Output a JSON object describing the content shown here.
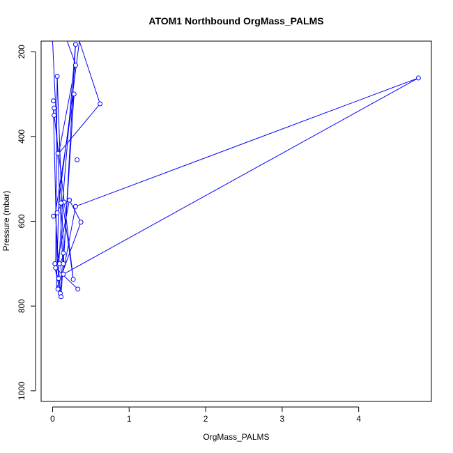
{
  "chart_data": {
    "type": "line",
    "title": "ATOM1 Northbound OrgMass_PALMS",
    "xlabel": "OrgMass_PALMS",
    "ylabel": "Pressure (mbar)",
    "xlim": [
      -0.15,
      4.95
    ],
    "ylim": [
      175,
      1025
    ],
    "y_reversed": true,
    "x_ticks": [
      0,
      1,
      2,
      3,
      4
    ],
    "y_ticks": [
      200,
      400,
      600,
      800,
      1000
    ],
    "x_tick_labels": [
      "0",
      "1",
      "2",
      "3",
      "4"
    ],
    "y_tick_labels": [
      "200",
      "400",
      "600",
      "800",
      "1000"
    ],
    "grid": false,
    "legend": "none",
    "series_color": "#0000ff",
    "series": [
      {
        "x": [
          0.33,
          0.04,
          0.06,
          0.15,
          0.3,
          4.78,
          0.14,
          0.0,
          0.19,
          0.3,
          0.08,
          0.62,
          0.35,
          0.08,
          0.05,
          0.37,
          0.22,
          0.06,
          0.01,
          0.27,
          0.13,
          0.07,
          0.02,
          0.11,
          0.28,
          0.03,
          0.13,
          0.3,
          0.15,
          0.1,
          0.12,
          0.1,
          0.04
        ],
        "y": [
          760,
          710,
          258,
          710,
          565,
          262,
          725,
          175,
          175,
          230,
          440,
          323,
          175,
          555,
          760,
          602,
          550,
          700,
          333,
          737,
          555,
          735,
          700,
          778,
          300,
          588,
          555,
          183,
          675,
          700,
          722,
          770,
          590
        ]
      }
    ],
    "points": [
      {
        "x": 0.01,
        "y": 316
      },
      {
        "x": 0.02,
        "y": 333
      },
      {
        "x": 0.02,
        "y": 350
      },
      {
        "x": 0.06,
        "y": 258
      },
      {
        "x": 0.3,
        "y": 183
      },
      {
        "x": 0.3,
        "y": 232
      },
      {
        "x": 0.28,
        "y": 300
      },
      {
        "x": 0.62,
        "y": 323
      },
      {
        "x": 4.78,
        "y": 262
      },
      {
        "x": 0.07,
        "y": 440
      },
      {
        "x": 0.32,
        "y": 455
      },
      {
        "x": 0.06,
        "y": 580
      },
      {
        "x": 0.01,
        "y": 588
      },
      {
        "x": 0.37,
        "y": 602
      },
      {
        "x": 0.3,
        "y": 565
      },
      {
        "x": 0.22,
        "y": 550
      },
      {
        "x": 0.13,
        "y": 555
      },
      {
        "x": 0.15,
        "y": 555
      },
      {
        "x": 0.11,
        "y": 557
      },
      {
        "x": 0.14,
        "y": 675
      },
      {
        "x": 0.03,
        "y": 700
      },
      {
        "x": 0.09,
        "y": 700
      },
      {
        "x": 0.14,
        "y": 700
      },
      {
        "x": 0.04,
        "y": 710
      },
      {
        "x": 0.14,
        "y": 725
      },
      {
        "x": 0.08,
        "y": 735
      },
      {
        "x": 0.27,
        "y": 737
      },
      {
        "x": 0.33,
        "y": 760
      },
      {
        "x": 0.07,
        "y": 760
      },
      {
        "x": 0.1,
        "y": 770
      },
      {
        "x": 0.11,
        "y": 778
      }
    ]
  }
}
